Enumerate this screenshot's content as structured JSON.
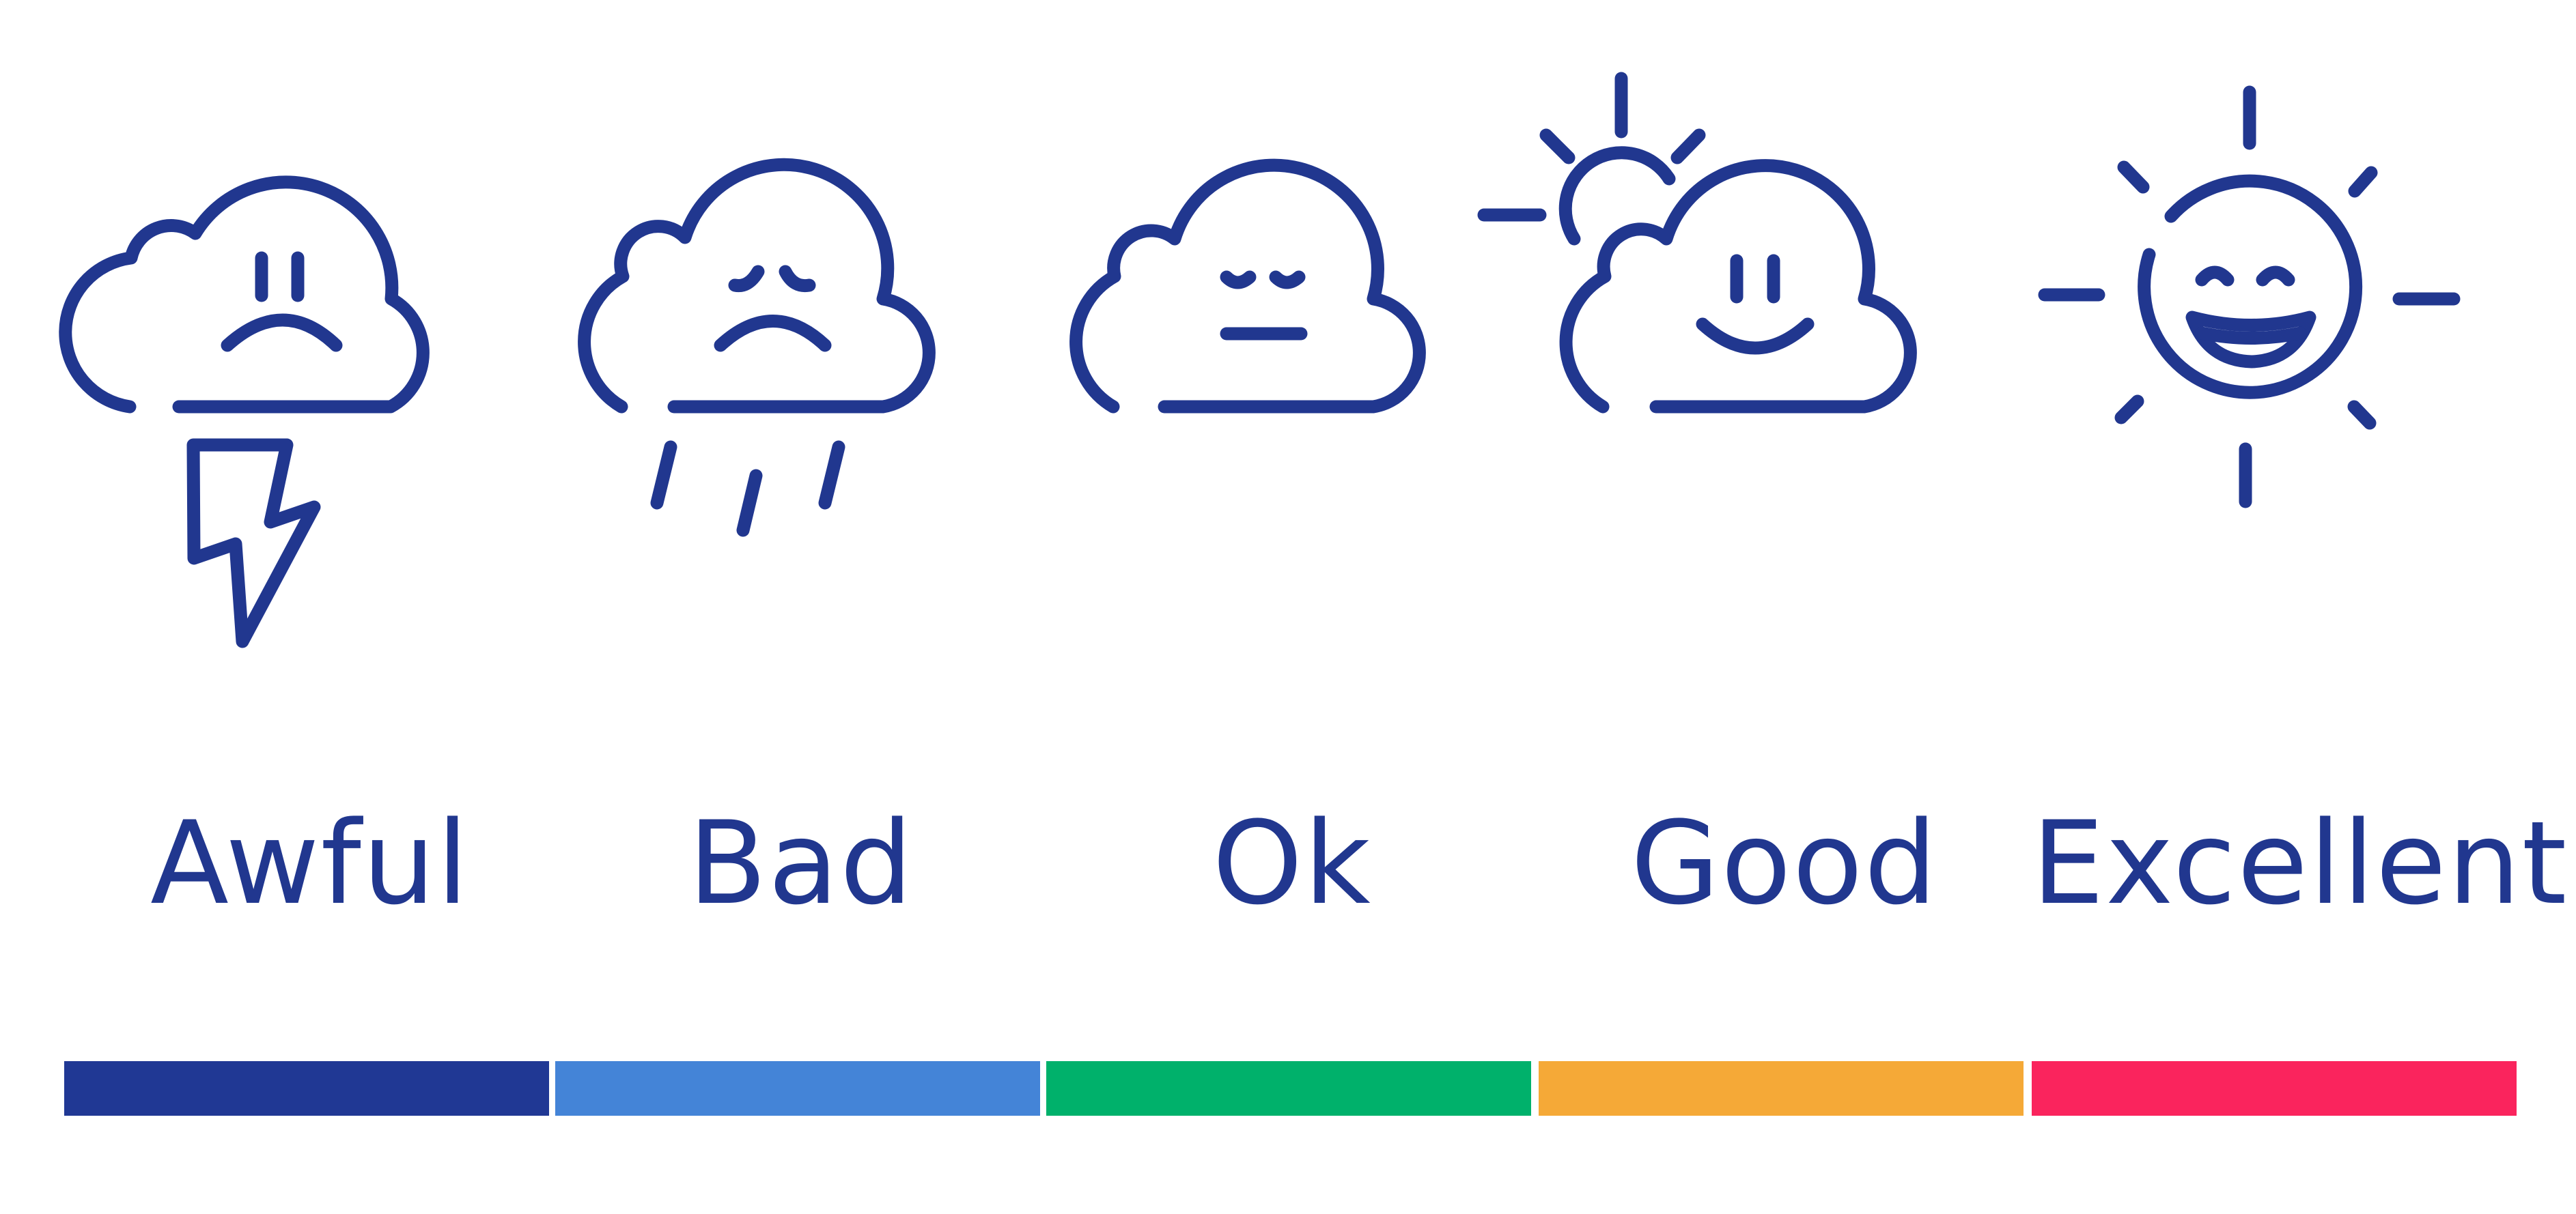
{
  "options": [
    {
      "label": "Awful",
      "icon": "thunderstorm-cloud-icon",
      "color": "#203894"
    },
    {
      "label": "Bad",
      "icon": "rain-cloud-icon",
      "color": "#4484d7"
    },
    {
      "label": "Ok",
      "icon": "neutral-cloud-icon",
      "color": "#00b16b"
    },
    {
      "label": "Good",
      "icon": "sun-behind-cloud-icon",
      "color": "#f5a937"
    },
    {
      "label": "Excellent",
      "icon": "happy-sun-icon",
      "color": "#fa245d"
    }
  ],
  "stroke_color": "#21378f"
}
